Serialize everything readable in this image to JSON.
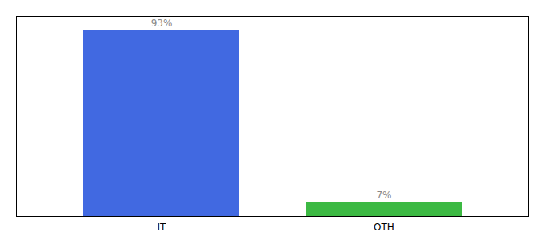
{
  "chart_data": {
    "type": "bar",
    "categories": [
      "IT",
      "OTH"
    ],
    "values": [
      93,
      7
    ],
    "value_labels": [
      "93%",
      "7%"
    ],
    "colors": [
      "#4169E1",
      "#3CB943"
    ],
    "ylim": [
      0,
      100
    ],
    "yticks": [],
    "data_labels": true,
    "tick_labels": "x"
  }
}
